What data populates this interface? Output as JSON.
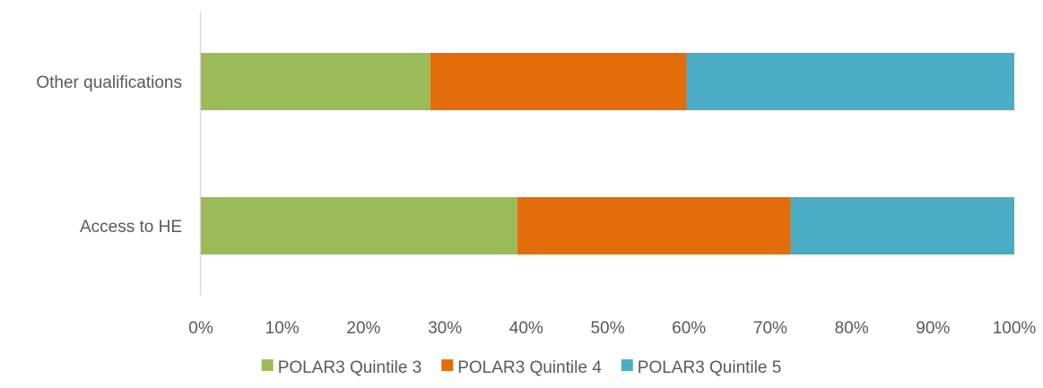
{
  "chart_data": {
    "type": "bar",
    "orientation": "horizontal",
    "stacked": "percent",
    "title": "",
    "xlabel": "",
    "ylabel": "",
    "xlim": [
      0,
      100
    ],
    "x_tick_labels": [
      "0%",
      "10%",
      "20%",
      "30%",
      "40%",
      "50%",
      "60%",
      "70%",
      "80%",
      "90%",
      "100%"
    ],
    "grid": false,
    "legend_position": "bottom",
    "categories": [
      "Other qualifications",
      "Access to HE"
    ],
    "series": [
      {
        "name": "POLAR3 Quintile 3",
        "color": "#9BBB59",
        "values": [
          28.2,
          38.9
        ]
      },
      {
        "name": "POLAR3 Quintile 4",
        "color": "#E46C0A",
        "values": [
          31.5,
          33.6
        ]
      },
      {
        "name": "POLAR3 Quintile 5",
        "color": "#4BACC6",
        "values": [
          40.3,
          27.5
        ]
      }
    ]
  }
}
